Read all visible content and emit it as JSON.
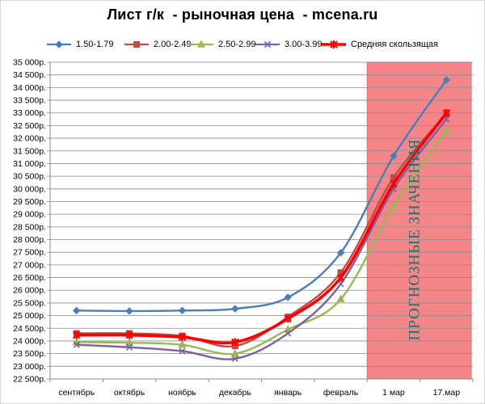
{
  "title": "Лист г/к  - рыночная цена  - mcena.ru",
  "chart_data": {
    "type": "line",
    "title": "Лист г/к  - рыночная цена  - mcena.ru",
    "xlabel": "",
    "ylabel": "",
    "categories": [
      "сентябрь",
      "октябрь",
      "ноябрь",
      "декабрь",
      "январь",
      "февраль",
      "1 мар",
      "17.мар"
    ],
    "ylim": [
      22500,
      35000
    ],
    "ytick_step": 500,
    "ytick_suffix": "р.",
    "grid": true,
    "legend_position": "top",
    "forecast_band": {
      "label": "ПРОГНОЗНЫЕ ЗНАЧЕНИЯ",
      "from_category": "1 мар",
      "to_category": "17.мар",
      "color": "#f4868a"
    },
    "series": [
      {
        "name": "1.50-1.79",
        "color": "#4a7ebb",
        "marker": "diamond",
        "values": [
          25200,
          25180,
          25200,
          25270,
          25720,
          27480,
          31300,
          34300
        ]
      },
      {
        "name": "2.00-2.49",
        "color": "#be4b48",
        "marker": "square",
        "values": [
          24300,
          24300,
          24200,
          23800,
          24950,
          26700,
          30450,
          32950
        ]
      },
      {
        "name": "2.50-2.99",
        "color": "#98b954",
        "marker": "triangle",
        "values": [
          23950,
          23930,
          23850,
          23500,
          24450,
          25650,
          29300,
          32300
        ]
      },
      {
        "name": "3.00-3.99",
        "color": "#7d60a0",
        "marker": "x",
        "values": [
          23850,
          23750,
          23600,
          23300,
          24300,
          26250,
          30000,
          32750
        ]
      },
      {
        "name": "Средняя  скользящая",
        "color": "#ff0000",
        "marker": "star",
        "bold": true,
        "values": [
          24230,
          24230,
          24150,
          23950,
          24880,
          26500,
          30200,
          33000
        ]
      }
    ]
  }
}
